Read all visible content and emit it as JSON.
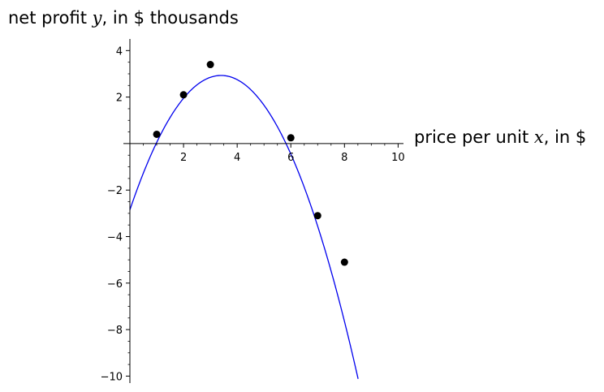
{
  "chart_data": {
    "type": "scatter",
    "title": "",
    "xlabel": {
      "pre": "price per unit ",
      "var": "x",
      "post": ", in $"
    },
    "ylabel": {
      "pre": "net profit ",
      "var": "y",
      "post": ", in $ thousands"
    },
    "xlim": [
      0,
      10.2
    ],
    "ylim": [
      -10.3,
      4.5
    ],
    "x_ticks": [
      2,
      4,
      6,
      8,
      10
    ],
    "y_ticks": [
      -10,
      -8,
      -6,
      -4,
      -2,
      2,
      4
    ],
    "x_tick_labels": [
      "2",
      "4",
      "6",
      "8",
      "10"
    ],
    "y_tick_labels": [
      "−10",
      "−8",
      "−6",
      "−4",
      "−2",
      "2",
      "4"
    ],
    "grid": false,
    "series": [
      {
        "kind": "points",
        "color": "#000000",
        "points": [
          {
            "x": 1,
            "y": 0.4
          },
          {
            "x": 2,
            "y": 2.1
          },
          {
            "x": 3,
            "y": 3.4
          },
          {
            "x": 6,
            "y": 0.25
          },
          {
            "x": 7,
            "y": -3.1
          },
          {
            "x": 8,
            "y": -5.1
          }
        ]
      },
      {
        "kind": "curve",
        "color": "#0000ee",
        "coefficients": [
          -0.5,
          3.4,
          -2.85
        ],
        "x_range": [
          0,
          9.1
        ]
      }
    ]
  }
}
